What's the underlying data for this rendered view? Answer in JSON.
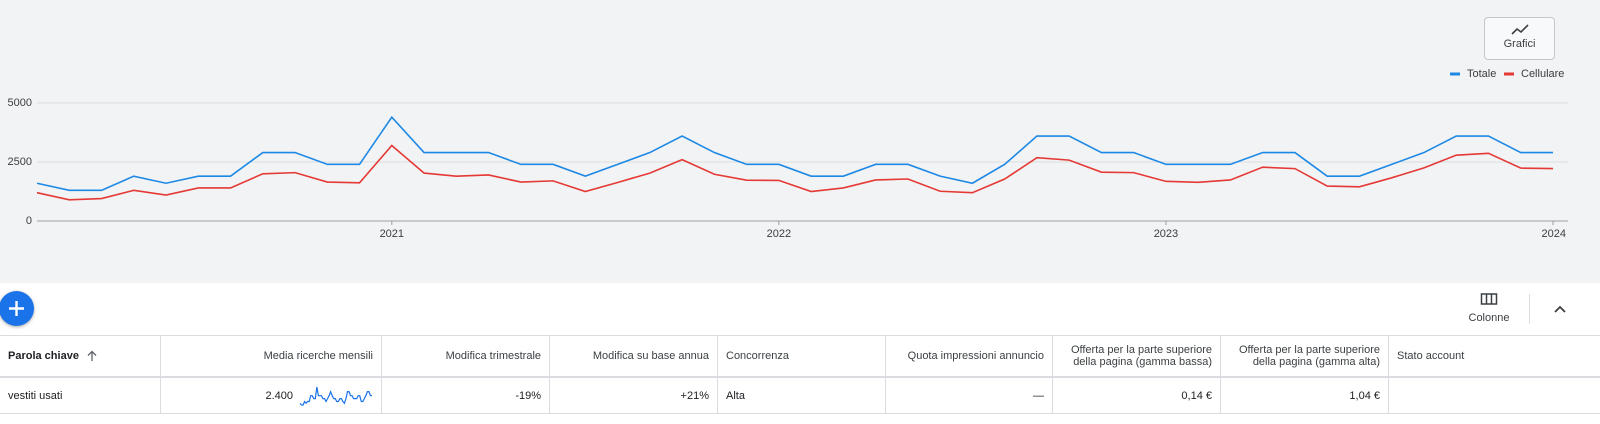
{
  "chart_data": {
    "type": "line",
    "categories": [
      null,
      null,
      null,
      null,
      null,
      null,
      null,
      null,
      null,
      null,
      null,
      "2021",
      null,
      null,
      null,
      null,
      null,
      null,
      null,
      null,
      null,
      null,
      null,
      "2022",
      null,
      null,
      null,
      null,
      null,
      null,
      null,
      null,
      null,
      null,
      null,
      "2023",
      null,
      null,
      null,
      null,
      null,
      null,
      null,
      null,
      null,
      null,
      null,
      "2024"
    ],
    "series": [
      {
        "name": "Totale",
        "color": "#1e88e5",
        "values": [
          1600,
          1300,
          1300,
          1900,
          1600,
          1900,
          1900,
          2900,
          2900,
          2400,
          2400,
          4400,
          2900,
          2900,
          2900,
          2400,
          2400,
          1900,
          2400,
          2900,
          3600,
          2900,
          2400,
          2400,
          1900,
          1900,
          2400,
          2400,
          1900,
          1600,
          2400,
          3600,
          3600,
          2900,
          2900,
          2400,
          2400,
          2400,
          2900,
          2900,
          1900,
          1900,
          2400,
          2900,
          3600,
          3600,
          2900,
          2900
        ]
      },
      {
        "name": "Cellulare",
        "color": "#e53935",
        "values": [
          1200,
          900,
          950,
          1300,
          1100,
          1400,
          1400,
          2000,
          2050,
          1650,
          1620,
          3200,
          2030,
          1900,
          1950,
          1650,
          1700,
          1250,
          1630,
          2030,
          2600,
          1980,
          1730,
          1720,
          1250,
          1400,
          1740,
          1780,
          1260,
          1200,
          1780,
          2680,
          2580,
          2070,
          2050,
          1680,
          1640,
          1740,
          2280,
          2220,
          1480,
          1450,
          1830,
          2250,
          2790,
          2870,
          2240,
          2220
        ]
      }
    ],
    "ylim": [
      0,
      5000
    ],
    "yticks": [
      0,
      2500,
      5000
    ],
    "grid": true,
    "legend": "top-right"
  },
  "toolbar": {
    "chart_button": "Grafici",
    "columns_button": "Colonne"
  },
  "table": {
    "headers": [
      "Parola chiave",
      "Media ricerche mensili",
      "Modifica trimestrale",
      "Modifica su base annua",
      "Concorrenza",
      "Quota impressioni annuncio",
      "Offerta per la parte superiore della pagina (gamma bassa)",
      "Offerta per la parte superiore della pagina (gamma alta)",
      "Stato account"
    ],
    "rows": [
      [
        "vestiti usati",
        "2.400",
        "-19%",
        "+21%",
        "Alta",
        "—",
        "0,14 €",
        "1,04 €",
        ""
      ]
    ]
  }
}
